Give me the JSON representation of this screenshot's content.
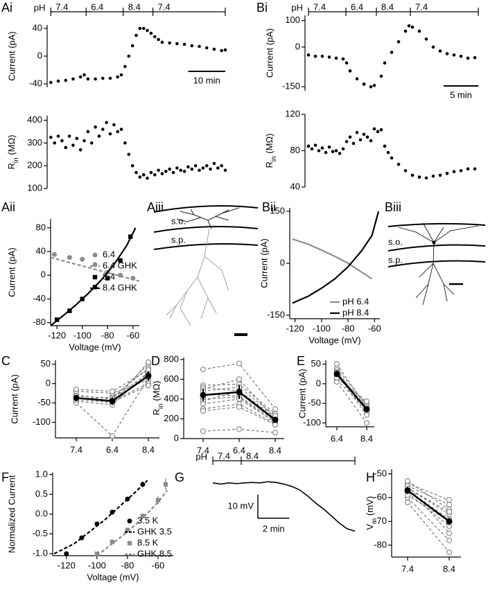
{
  "chart_data": [
    {
      "type": "scatter",
      "panel": "Ai",
      "ylabel": "Current (pA)",
      "color": "#000",
      "x": [
        0,
        2,
        4,
        6,
        8,
        9,
        10,
        12,
        14,
        16,
        18,
        19,
        20,
        21,
        22,
        23,
        24,
        25,
        26,
        27,
        28,
        29,
        30,
        32,
        34,
        36,
        38,
        40,
        42,
        44,
        46,
        47
      ],
      "values": [
        -38,
        -36,
        -35,
        -33,
        -30,
        -27,
        -33,
        -33,
        -32,
        -32,
        -30,
        -27,
        -15,
        0,
        15,
        30,
        40,
        40,
        37,
        33,
        28,
        24,
        20,
        19,
        18,
        17,
        15,
        14,
        12,
        10,
        8,
        9
      ],
      "xlim": [
        -1,
        47
      ],
      "ylim": [
        -45,
        45
      ],
      "yticks": [
        -40,
        0,
        40
      ],
      "ph_bar": {
        "label": "pH",
        "values": [
          7.4,
          6.4,
          8.4,
          7.4
        ],
        "times": [
          0,
          9.5,
          19.5,
          27.5
        ]
      },
      "scale_bar": {
        "length": 10,
        "label": "10 min"
      }
    },
    {
      "type": "scatter",
      "ylabel": [
        "R",
        "in",
        " (MΩ)"
      ],
      "color": "#000",
      "x": [
        0,
        1,
        2,
        3,
        4,
        5,
        6,
        7,
        8,
        9,
        10,
        11,
        12,
        13,
        14,
        15,
        16,
        17,
        18,
        19,
        20,
        21,
        22,
        23,
        24,
        25,
        26,
        27,
        28,
        29,
        30,
        31,
        32,
        33,
        34,
        35,
        36,
        37,
        38,
        39,
        40,
        41,
        42,
        43,
        44,
        45,
        46,
        47
      ],
      "values": [
        325,
        300,
        330,
        310,
        280,
        330,
        290,
        320,
        270,
        310,
        350,
        300,
        370,
        330,
        360,
        390,
        340,
        380,
        350,
        360,
        300,
        250,
        200,
        170,
        150,
        160,
        145,
        170,
        160,
        180,
        165,
        175,
        185,
        170,
        190,
        180,
        175,
        195,
        185,
        200,
        180,
        190,
        200,
        185,
        210,
        190,
        200,
        180
      ],
      "xlim": [
        -1,
        47
      ],
      "ylim": [
        100,
        420
      ],
      "yticks": [
        100,
        200,
        300,
        400
      ]
    },
    {
      "type": "scatter",
      "panel": "Bi",
      "ylabel": "Current (pA)",
      "color": "#000",
      "x": [
        0,
        1,
        2,
        3,
        4,
        5,
        5.5,
        6,
        7,
        8,
        9,
        9.5,
        10.5,
        11,
        12,
        13,
        14,
        14.5,
        15,
        16,
        17,
        18,
        19,
        20,
        21,
        22,
        23,
        24
      ],
      "values": [
        -30,
        -35,
        -35,
        -38,
        -42,
        -45,
        -60,
        -90,
        -120,
        -140,
        -150,
        -145,
        -110,
        -60,
        -20,
        20,
        60,
        80,
        75,
        60,
        30,
        0,
        -15,
        -25,
        -30,
        -35,
        -42,
        -40
      ],
      "xlim": [
        -0.5,
        24.5
      ],
      "ylim": [
        -165,
        120
      ],
      "yticks": [
        -150,
        0,
        100
      ],
      "ph_bar": {
        "label": "pH",
        "values": [
          7.4,
          6.4,
          8.4,
          7.4
        ],
        "times": [
          0,
          5.4,
          9.8,
          14.7
        ]
      },
      "scale_bar": {
        "length": 5,
        "label": "5 min"
      }
    },
    {
      "type": "scatter",
      "ylabel": [
        "R",
        "in",
        " (MΩ)"
      ],
      "color": "#000",
      "x": [
        0,
        0.5,
        1,
        1.5,
        2,
        2.5,
        3,
        3.5,
        4,
        4.5,
        5,
        5.5,
        6,
        6.5,
        7,
        7.5,
        8,
        8.5,
        9,
        9.5,
        10,
        10.5,
        11,
        11.5,
        12,
        13,
        14,
        15,
        16,
        17,
        18,
        19,
        20,
        21,
        22,
        23,
        24
      ],
      "values": [
        85,
        82,
        86,
        80,
        83,
        78,
        84,
        79,
        80,
        77,
        82,
        90,
        95,
        88,
        100,
        92,
        98,
        95,
        91,
        104,
        101,
        103,
        85,
        78,
        72,
        65,
        58,
        53,
        51,
        50,
        52,
        53,
        55,
        57,
        58,
        60,
        60
      ],
      "xlim": [
        -0.5,
        24.5
      ],
      "ylim": [
        40,
        120
      ],
      "yticks": [
        40,
        80,
        120
      ]
    },
    {
      "type": "line",
      "panel": "Aii",
      "xlabel": "Voltage (mV)",
      "ylabel": "Current (pA)",
      "xlim": [
        -125,
        -55
      ],
      "xticks": [
        -120,
        -100,
        -80,
        -60
      ],
      "ylim": [
        -85,
        95
      ],
      "yticks": [
        -80,
        -40,
        0,
        40,
        80
      ],
      "legend": "lower right",
      "series": [
        {
          "name": "6.4",
          "color": "#8c8c8c",
          "marker": "circle",
          "x": [
            -122,
            -110,
            -100,
            -90,
            -80,
            -70,
            -60
          ],
          "values": [
            35,
            30,
            27,
            18,
            5,
            0,
            -5
          ]
        },
        {
          "name": "6.4 GHK",
          "color": "#8c8c8c",
          "dash": true,
          "x": [
            -125,
            -55
          ],
          "values": [
            30,
            -10
          ]
        },
        {
          "name": "8.4",
          "color": "#000",
          "marker": "square",
          "x": [
            -120,
            -110,
            -100,
            -90,
            -80,
            -70,
            -62
          ],
          "values": [
            -75,
            -60,
            -40,
            -20,
            -5,
            25,
            65
          ]
        },
        {
          "name": "8.4 GHK",
          "color": "#000",
          "x": [
            -125,
            -115,
            -105,
            -95,
            -85,
            -75,
            -65,
            -58
          ],
          "values": [
            -85,
            -68,
            -50,
            -30,
            -8,
            18,
            50,
            80
          ]
        }
      ]
    },
    {
      "type": "image",
      "panel": "Aiii",
      "labels": [
        "s.o.",
        "s.p."
      ]
    },
    {
      "type": "line",
      "panel": "Bii",
      "xlabel": "Voltage (mV)",
      "ylabel": "Current (pA)",
      "xlim": [
        -124,
        -56
      ],
      "xticks": [
        -120,
        -100,
        -80,
        -60
      ],
      "ylim": [
        -160,
        160
      ],
      "yticks": [
        -150,
        0,
        150
      ],
      "legend": "lower right",
      "series": [
        {
          "name": "pH 6.4",
          "color": "#8c8c8c",
          "x": [
            -122,
            -110,
            -100,
            -90,
            -80,
            -70,
            -62
          ],
          "values": [
            70,
            55,
            38,
            20,
            0,
            -25,
            -45
          ]
        },
        {
          "name": "pH 8.4",
          "color": "#000",
          "x": [
            -122,
            -110,
            -100,
            -90,
            -80,
            -70,
            -62,
            -57
          ],
          "values": [
            -115,
            -95,
            -72,
            -45,
            -10,
            35,
            80,
            150
          ]
        }
      ]
    },
    {
      "type": "image",
      "panel": "Biii",
      "labels": [
        "s.o.",
        "s.p."
      ]
    },
    {
      "type": "paired",
      "panel": "C",
      "ylabel": "Current (pA)",
      "categories": [
        "7.4",
        "6.4",
        "8.4"
      ],
      "ylim": [
        -140,
        60
      ],
      "yticks": [
        -100,
        -50,
        0,
        50
      ],
      "color": "#777",
      "series": [
        {
          "values": [
            -30,
            -40,
            50
          ]
        },
        {
          "values": [
            -35,
            -50,
            55
          ]
        },
        {
          "values": [
            -40,
            -35,
            40
          ]
        },
        {
          "values": [
            -45,
            -55,
            30
          ]
        },
        {
          "values": [
            -20,
            -25,
            10
          ]
        },
        {
          "values": [
            -50,
            -135,
            15
          ]
        },
        {
          "values": [
            -38,
            -45,
            0
          ]
        },
        {
          "values": [
            -42,
            -48,
            -5
          ]
        },
        {
          "values": [
            -32,
            -38,
            25
          ]
        },
        {
          "values": [
            -15,
            -20,
            35
          ]
        }
      ],
      "mean": {
        "color": "#000",
        "values": [
          -37,
          -45,
          20
        ],
        "errors": [
          8,
          10,
          12
        ]
      }
    },
    {
      "type": "paired",
      "panel": "D",
      "ylabel": [
        "R",
        "in",
        " (MΩ)"
      ],
      "categories": [
        "7.4",
        "6.4",
        "8.4"
      ],
      "ylim": [
        0,
        820
      ],
      "yticks": [
        0,
        200,
        400,
        600,
        800
      ],
      "color": "#777",
      "series": [
        {
          "values": [
            700,
            760,
            300
          ]
        },
        {
          "values": [
            540,
            550,
            250
          ]
        },
        {
          "values": [
            520,
            480,
            220
          ]
        },
        {
          "values": [
            500,
            600,
            200
          ]
        },
        {
          "values": [
            450,
            430,
            180
          ]
        },
        {
          "values": [
            400,
            420,
            160
          ]
        },
        {
          "values": [
            380,
            480,
            200
          ]
        },
        {
          "values": [
            350,
            400,
            170
          ]
        },
        {
          "values": [
            300,
            350,
            150
          ]
        },
        {
          "values": [
            280,
            320,
            140
          ]
        },
        {
          "values": [
            75,
            95,
            60
          ]
        },
        {
          "values": [
            480,
            520,
            230
          ]
        }
      ],
      "mean": {
        "color": "#000",
        "values": [
          440,
          470,
          190
        ],
        "errors": [
          60,
          70,
          30
        ]
      }
    },
    {
      "type": "paired",
      "panel": "E",
      "ylabel": "Current (pA)",
      "categories": [
        "6.4",
        "8.4"
      ],
      "ylim": [
        -110,
        60
      ],
      "yticks": [
        -100,
        -50,
        0,
        50
      ],
      "color": "#777",
      "series": [
        {
          "values": [
            50,
            -60
          ]
        },
        {
          "values": [
            40,
            -55
          ]
        },
        {
          "values": [
            35,
            -70
          ]
        },
        {
          "values": [
            30,
            -75
          ]
        },
        {
          "values": [
            20,
            -50
          ]
        },
        {
          "values": [
            10,
            -65
          ]
        },
        {
          "values": [
            5,
            -100
          ]
        },
        {
          "values": [
            25,
            -80
          ]
        },
        {
          "values": [
            15,
            -45
          ]
        },
        {
          "values": [
            28,
            -60
          ]
        }
      ],
      "mean": {
        "color": "#000",
        "values": [
          25,
          -65
        ],
        "errors": [
          6,
          8
        ]
      }
    },
    {
      "type": "line",
      "panel": "F",
      "xlabel": "Voltage (mV)",
      "ylabel": "Normalized Current",
      "xlim": [
        -129,
        -50
      ],
      "xticks": [
        -120,
        -100,
        -80,
        -60
      ],
      "ylim": [
        -1.05,
        1.05
      ],
      "yticks": [
        {
          "value": -1,
          "label": "-1.0"
        },
        -0.5,
        {
          "value": 0,
          "label": "0.0"
        },
        0.5,
        {
          "value": 1,
          "label": "1.0"
        }
      ],
      "legend": "lower right",
      "series": [
        {
          "name": "3.5 K",
          "color": "#000",
          "marker": "circle",
          "x": [
            -120,
            -110,
            -100,
            -90,
            -80,
            -70
          ],
          "values": [
            -1.0,
            -0.6,
            -0.25,
            0.05,
            0.38,
            0.75
          ],
          "errors": [
            0.05,
            0.05,
            0.05,
            0.05,
            0.05,
            0.07
          ]
        },
        {
          "name": "GHK 3.5",
          "color": "#000",
          "dash": true,
          "x": [
            -128,
            -115,
            -105,
            -95,
            -85,
            -75,
            -67
          ],
          "values": [
            -1.0,
            -0.75,
            -0.45,
            -0.15,
            0.2,
            0.55,
            0.85
          ]
        },
        {
          "name": "8.5 K",
          "color": "#8c8c8c",
          "marker": "square",
          "x": [
            -100,
            -90,
            -80,
            -70,
            -60,
            -55
          ],
          "values": [
            -1.0,
            -0.7,
            -0.4,
            -0.05,
            0.35,
            0.75
          ],
          "errors": [
            0.05,
            0.05,
            0.05,
            0.07,
            0.1,
            0.15
          ]
        },
        {
          "name": "GHK 8.5",
          "color": "#8c8c8c",
          "dash": true,
          "x": [
            -100,
            -90,
            -80,
            -70,
            -60,
            -54
          ],
          "values": [
            -1.05,
            -0.75,
            -0.45,
            -0.1,
            0.3,
            0.6
          ]
        }
      ]
    },
    {
      "type": "trace",
      "panel": "G",
      "color": "#000",
      "x": [
        0,
        0.5,
        1,
        1.5,
        2,
        2.5,
        3,
        3.5,
        4,
        4.5,
        5,
        5.5,
        6,
        6.5,
        7,
        7.5,
        8,
        8.5,
        9
      ],
      "values": [
        -57,
        -57.5,
        -57,
        -57.3,
        -57,
        -56.8,
        -57,
        -56.5,
        -56.8,
        -57.5,
        -58.5,
        -60,
        -62.5,
        -65.5,
        -68,
        -71,
        -74,
        -76.5,
        -77.5
      ],
      "xlim": [
        0,
        9
      ],
      "ylim": [
        -85,
        -52
      ],
      "ph_bar": {
        "label": "pH",
        "values": [
          7.4,
          8.4
        ],
        "times": [
          0,
          1.8
        ]
      },
      "scale_bar": {
        "x": 2,
        "x_label": "2 min",
        "y": 10,
        "y_label": "10 mV"
      }
    },
    {
      "type": "paired",
      "panel": "H",
      "ylabel": [
        "V",
        "m",
        " (mV)"
      ],
      "categories": [
        "7.4",
        "8.4"
      ],
      "ylim": [
        -85,
        -48
      ],
      "yticks": [
        -80,
        -70,
        -60,
        -50
      ],
      "color": "#777",
      "series": [
        {
          "values": [
            -54,
            -61
          ]
        },
        {
          "values": [
            -55,
            -63
          ]
        },
        {
          "values": [
            -53,
            -65
          ]
        },
        {
          "values": [
            -56,
            -67
          ]
        },
        {
          "values": [
            -57,
            -69
          ]
        },
        {
          "values": [
            -58,
            -72
          ]
        },
        {
          "values": [
            -55,
            -75
          ]
        },
        {
          "values": [
            -60,
            -78
          ]
        },
        {
          "values": [
            -62,
            -83
          ]
        },
        {
          "values": [
            -59,
            -70
          ]
        },
        {
          "values": [
            -56,
            -66
          ]
        }
      ],
      "mean": {
        "color": "#000",
        "values": [
          -57,
          -70
        ],
        "errors": [
          1.5,
          1.5
        ]
      }
    }
  ]
}
